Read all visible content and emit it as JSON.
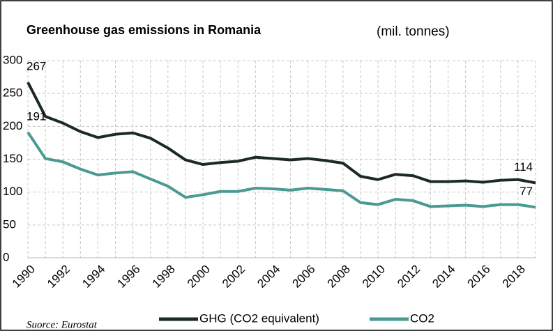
{
  "chart_data": {
    "type": "line",
    "title": "Greenhouse gas emissions in Romania",
    "subtitle": "(mil. tonnes)",
    "source": "Suorce: Eurostat",
    "x": [
      1990,
      1991,
      1992,
      1993,
      1994,
      1995,
      1996,
      1997,
      1998,
      1999,
      2000,
      2001,
      2002,
      2003,
      2004,
      2005,
      2006,
      2007,
      2008,
      2009,
      2010,
      2011,
      2012,
      2013,
      2014,
      2015,
      2016,
      2017,
      2018,
      2019
    ],
    "xlim": [
      1990,
      2019
    ],
    "xticks": [
      1990,
      1992,
      1994,
      1996,
      1998,
      2000,
      2002,
      2004,
      2006,
      2008,
      2010,
      2012,
      2014,
      2016,
      2018
    ],
    "ylim": [
      0,
      300
    ],
    "yticks": [
      0,
      50,
      100,
      150,
      200,
      250,
      300
    ],
    "grid": true,
    "legend": "bottom",
    "series": [
      {
        "name": "GHG (CO2 equivalent)",
        "color": "#1b2a26",
        "values": [
          267,
          215,
          205,
          192,
          183,
          188,
          190,
          182,
          167,
          149,
          142,
          145,
          147,
          153,
          151,
          149,
          151,
          148,
          144,
          124,
          119,
          127,
          125,
          116,
          116,
          117,
          115,
          118,
          119,
          114
        ],
        "value_labels": [
          "267",
          null,
          null,
          null,
          null,
          null,
          null,
          null,
          null,
          null,
          null,
          null,
          null,
          null,
          null,
          null,
          null,
          null,
          null,
          null,
          null,
          null,
          null,
          null,
          null,
          null,
          null,
          null,
          null,
          "114"
        ]
      },
      {
        "name": "CO2",
        "color": "#4a9a92",
        "values": [
          191,
          151,
          146,
          135,
          126,
          129,
          131,
          120,
          109,
          92,
          96,
          101,
          101,
          106,
          105,
          103,
          106,
          104,
          102,
          84,
          81,
          89,
          87,
          78,
          79,
          80,
          78,
          81,
          81,
          77
        ],
        "value_labels": [
          "191",
          null,
          null,
          null,
          null,
          null,
          null,
          null,
          null,
          null,
          null,
          null,
          null,
          null,
          null,
          null,
          null,
          null,
          null,
          null,
          null,
          null,
          null,
          null,
          null,
          null,
          null,
          null,
          null,
          "77"
        ]
      }
    ]
  }
}
